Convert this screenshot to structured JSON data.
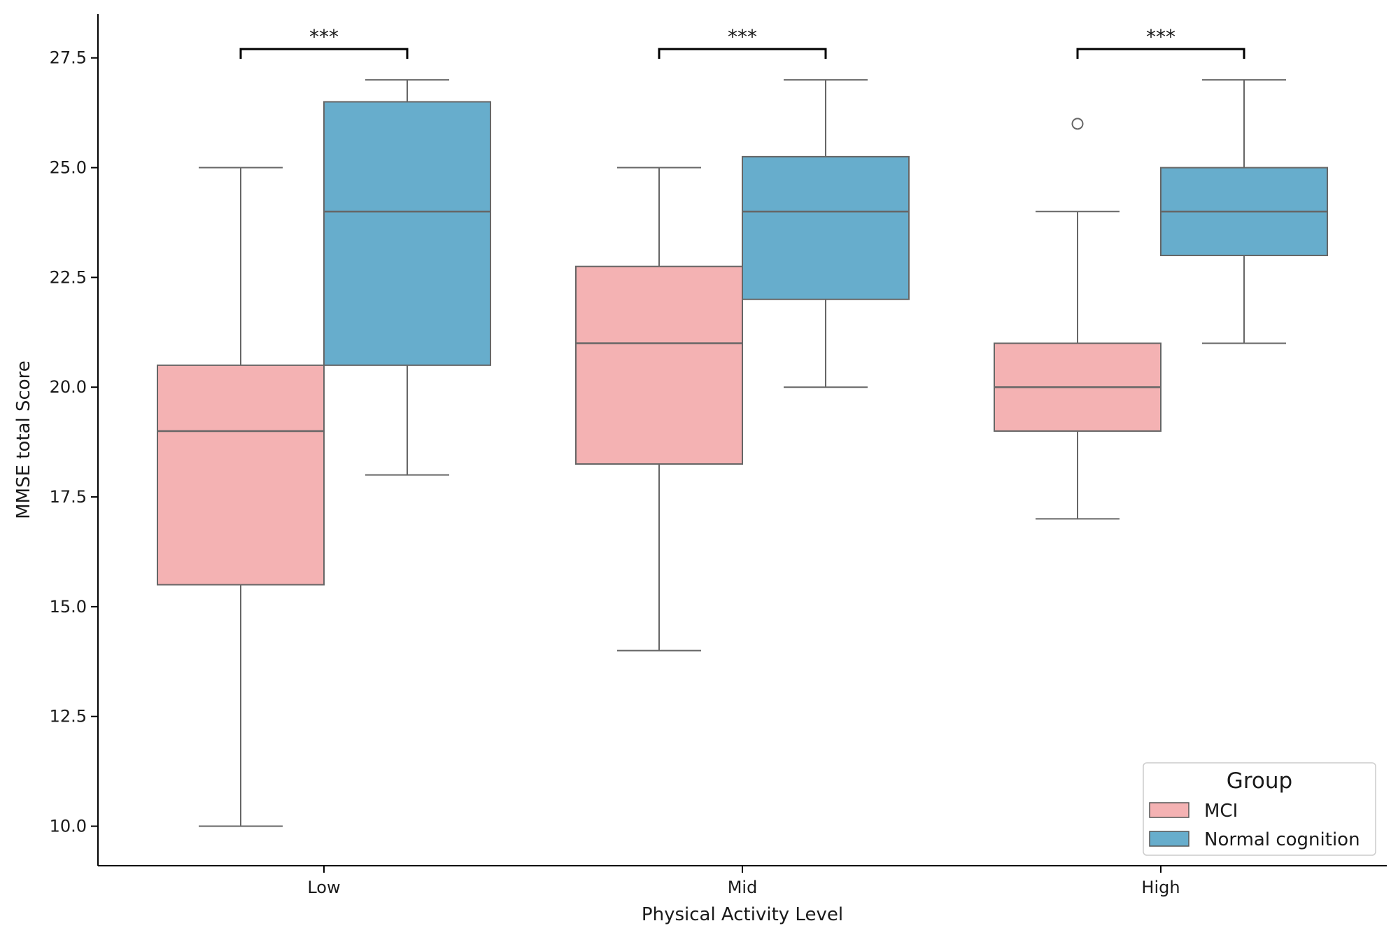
{
  "chart_data": {
    "type": "boxplot",
    "title": "",
    "xlabel": "Physical Activity Level",
    "ylabel": "MMSE total Score",
    "categories": [
      "Low",
      "Mid",
      "High"
    ],
    "ylim": [
      9.1,
      28.5
    ],
    "yticks": [
      10.0,
      12.5,
      15.0,
      17.5,
      20.0,
      22.5,
      25.0,
      27.5
    ],
    "ytick_labels": [
      "10.0",
      "12.5",
      "15.0",
      "17.5",
      "20.0",
      "22.5",
      "25.0",
      "27.5"
    ],
    "legend": {
      "title": "Group",
      "position": "bottom-right"
    },
    "series": [
      {
        "name": "MCI",
        "color": "#f4b2b3",
        "boxes": [
          {
            "category": "Low",
            "whisker_low": 10.0,
            "q1": 15.5,
            "median": 19.0,
            "q3": 20.5,
            "whisker_high": 25.0,
            "outliers": []
          },
          {
            "category": "Mid",
            "whisker_low": 14.0,
            "q1": 18.25,
            "median": 21.0,
            "q3": 22.75,
            "whisker_high": 25.0,
            "outliers": []
          },
          {
            "category": "High",
            "whisker_low": 17.0,
            "q1": 19.0,
            "median": 20.0,
            "q3": 21.0,
            "whisker_high": 24.0,
            "outliers": [
              26.0
            ]
          }
        ]
      },
      {
        "name": "Normal cognition",
        "color": "#67adcc",
        "boxes": [
          {
            "category": "Low",
            "whisker_low": 18.0,
            "q1": 20.5,
            "median": 24.0,
            "q3": 26.5,
            "whisker_high": 27.0,
            "outliers": []
          },
          {
            "category": "Mid",
            "whisker_low": 20.0,
            "q1": 22.0,
            "median": 24.0,
            "q3": 25.25,
            "whisker_high": 27.0,
            "outliers": []
          },
          {
            "category": "High",
            "whisker_low": 21.0,
            "q1": 23.0,
            "median": 24.0,
            "q3": 25.0,
            "whisker_high": 27.0,
            "outliers": []
          }
        ]
      }
    ],
    "significance": [
      {
        "category": "Low",
        "label": "***",
        "bracket_y": 27.7
      },
      {
        "category": "Mid",
        "label": "***",
        "bracket_y": 27.7
      },
      {
        "category": "High",
        "label": "***",
        "bracket_y": 27.7
      }
    ]
  }
}
